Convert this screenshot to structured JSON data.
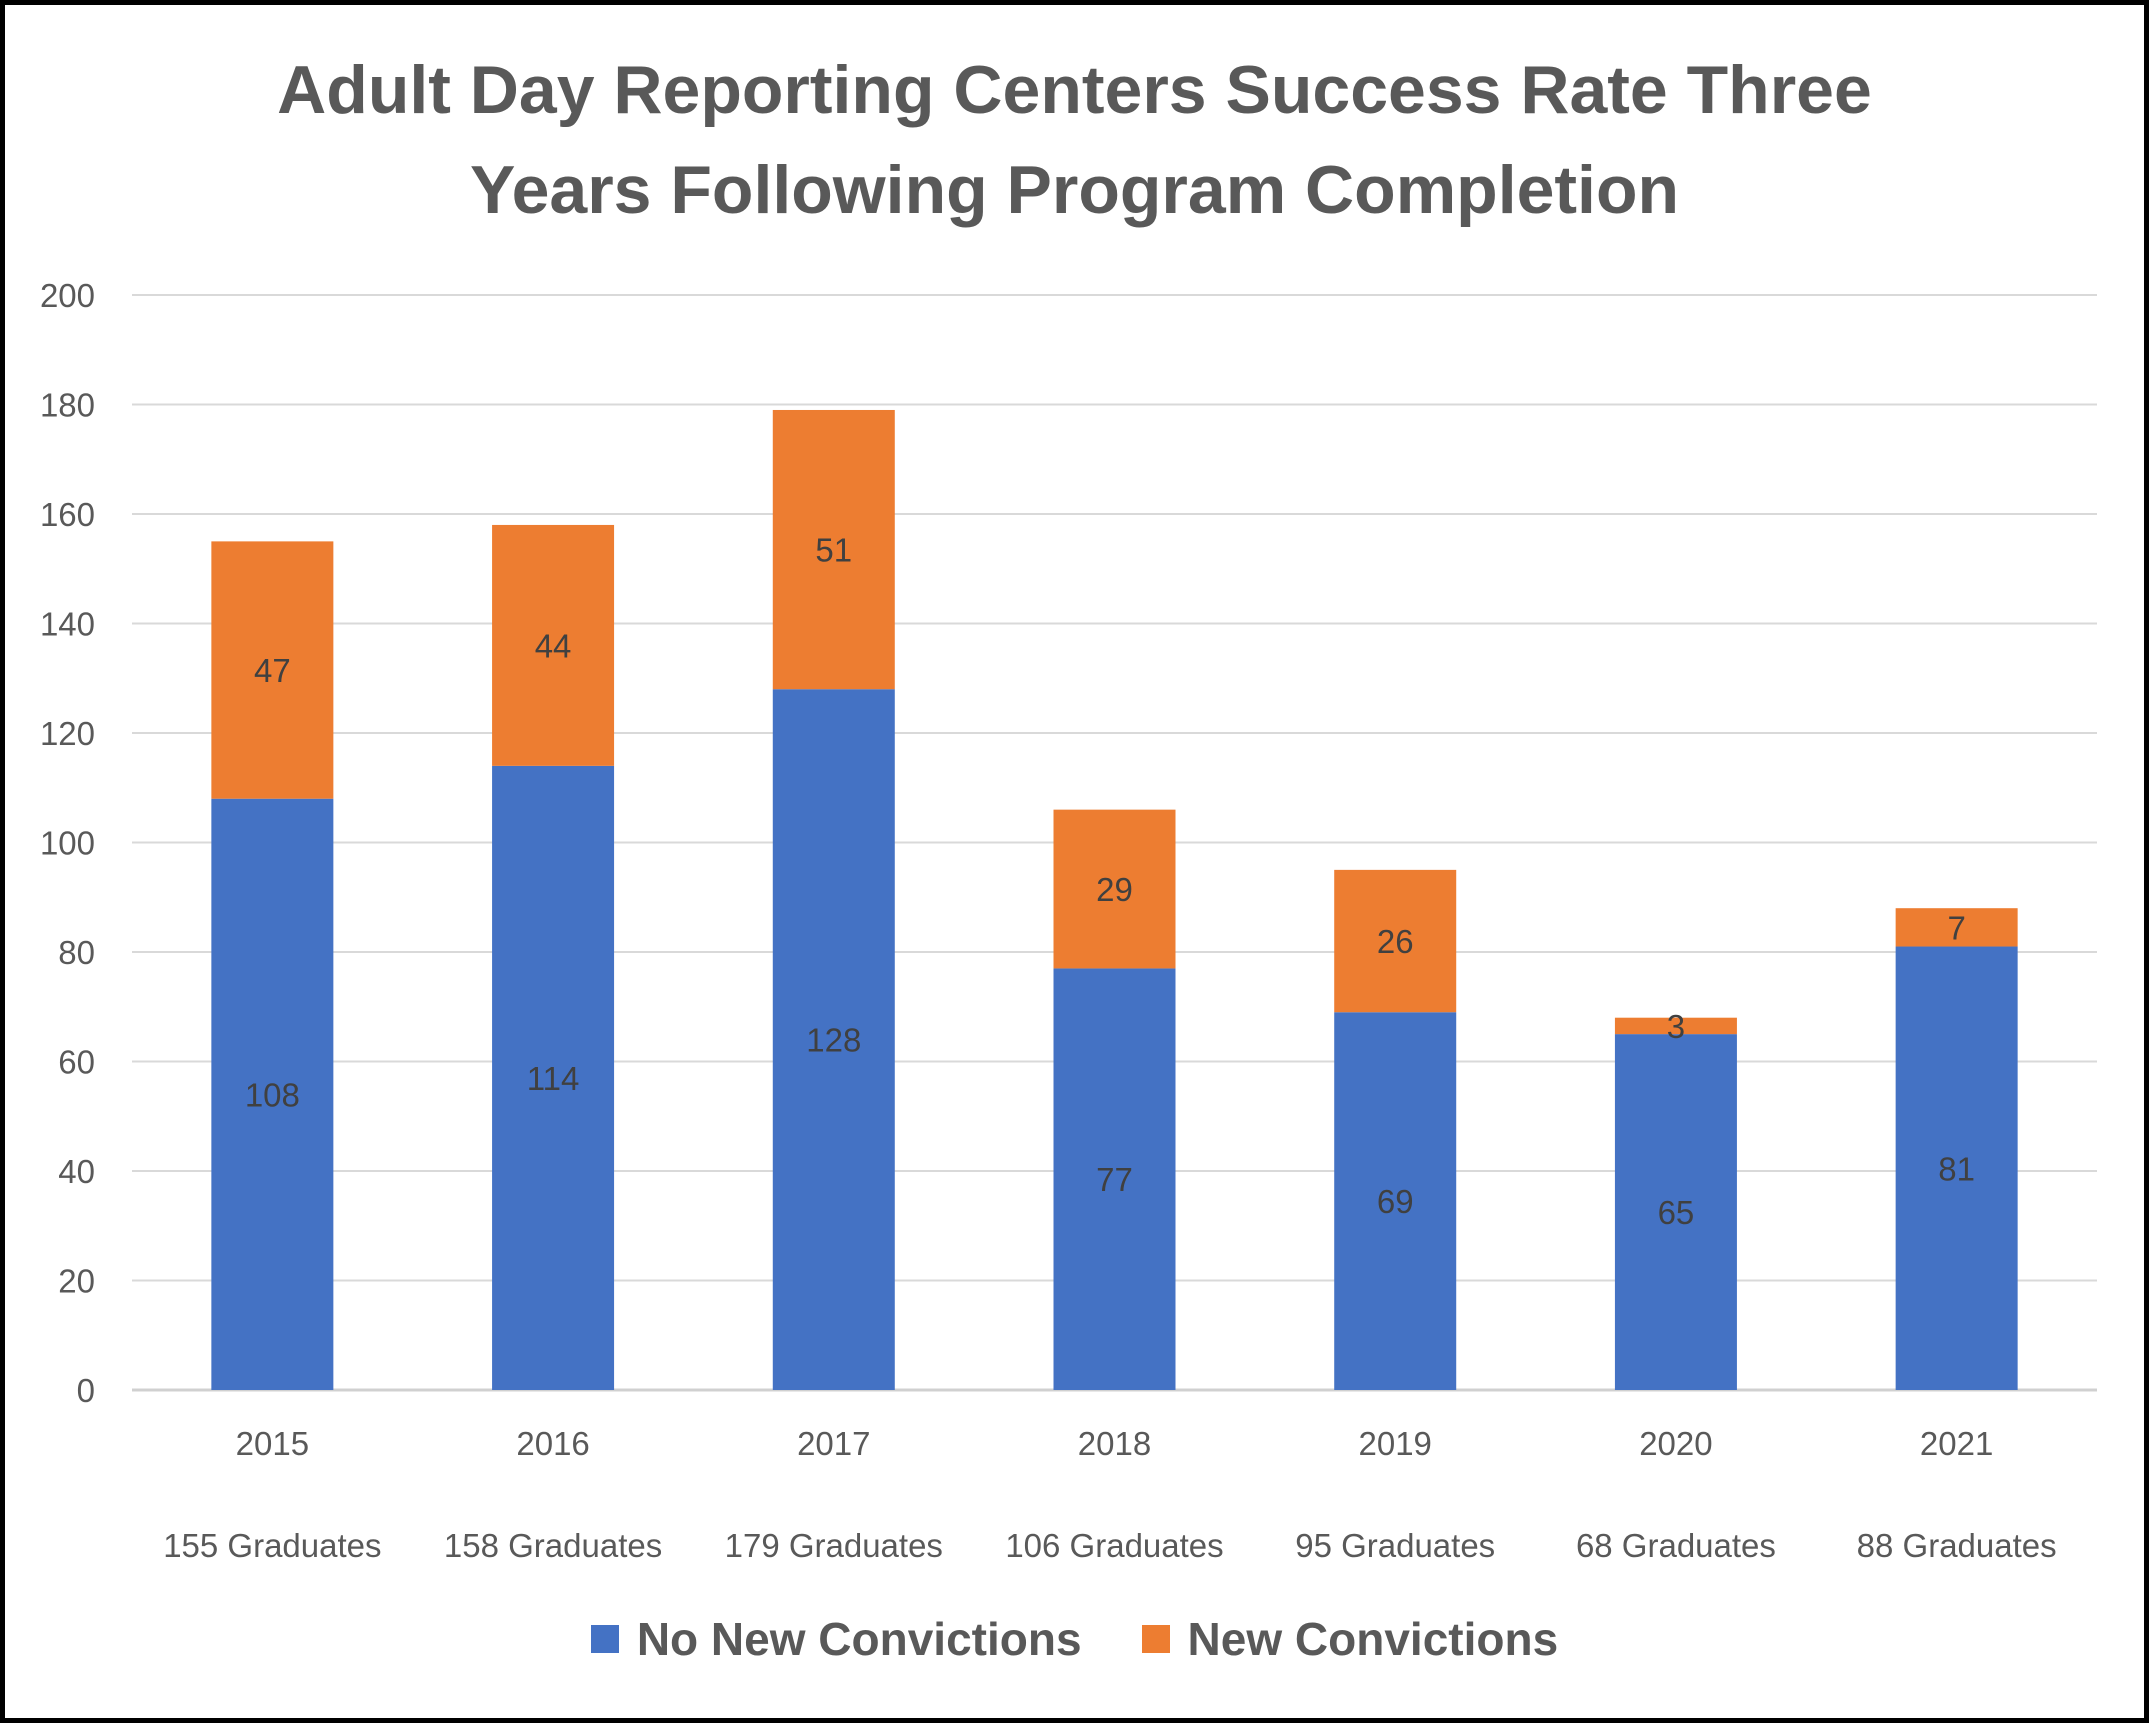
{
  "chart_data": {
    "type": "bar",
    "stacked": true,
    "title": "Adult Day Reporting Centers Success Rate Three Years Following Program Completion",
    "title_lines": [
      "Adult Day Reporting Centers Success Rate Three",
      "Years Following Program Completion"
    ],
    "categories": [
      "2015",
      "2016",
      "2017",
      "2018",
      "2019",
      "2020",
      "2021"
    ],
    "category_sublabels": [
      "155 Graduates",
      "158 Graduates",
      "179 Graduates",
      "106 Graduates",
      "95 Graduates",
      "68 Graduates",
      "88 Graduates"
    ],
    "series": [
      {
        "name": "No New Convictions",
        "color": "#4472C4",
        "values": [
          108,
          114,
          128,
          77,
          69,
          65,
          81
        ]
      },
      {
        "name": "New Convictions",
        "color": "#ED7D31",
        "values": [
          47,
          44,
          51,
          29,
          26,
          3,
          7
        ]
      }
    ],
    "xlabel": "",
    "ylabel": "",
    "ylim": [
      0,
      200
    ],
    "yticks": [
      0,
      20,
      40,
      60,
      80,
      100,
      120,
      140,
      160,
      180,
      200
    ],
    "grid": true,
    "data_labels": true,
    "legend": "bottom"
  }
}
